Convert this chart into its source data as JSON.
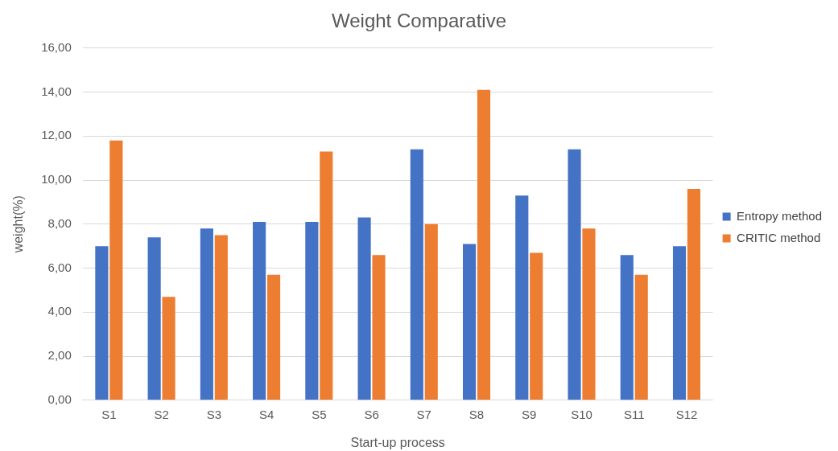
{
  "chart_data": {
    "type": "bar",
    "title": "Weight Comparative",
    "xlabel": "Start-up process",
    "ylabel": "weight(%)",
    "categories": [
      "S1",
      "S2",
      "S3",
      "S4",
      "S5",
      "S6",
      "S7",
      "S8",
      "S9",
      "S10",
      "S11",
      "S12"
    ],
    "series": [
      {
        "name": "Entropy method",
        "color": "#4472c4",
        "values": [
          7.0,
          7.4,
          7.8,
          8.1,
          8.1,
          8.3,
          11.4,
          7.1,
          9.3,
          11.4,
          6.6,
          7.0
        ]
      },
      {
        "name": "CRITIC method",
        "color": "#ed7d31",
        "values": [
          11.8,
          4.7,
          7.5,
          5.7,
          11.3,
          6.6,
          8.0,
          14.1,
          6.7,
          7.8,
          5.7,
          9.6
        ]
      }
    ],
    "ylim": [
      0,
      16
    ],
    "yticks": [
      {
        "value": 0,
        "label": "0,00"
      },
      {
        "value": 2,
        "label": "2,00"
      },
      {
        "value": 4,
        "label": "4,00"
      },
      {
        "value": 6,
        "label": "6,00"
      },
      {
        "value": 8,
        "label": "8,00"
      },
      {
        "value": 10,
        "label": "10,00"
      },
      {
        "value": 12,
        "label": "12,00"
      },
      {
        "value": 14,
        "label": "14,00"
      },
      {
        "value": 16,
        "label": "16,00"
      }
    ],
    "grid": "y",
    "legend": "right"
  }
}
